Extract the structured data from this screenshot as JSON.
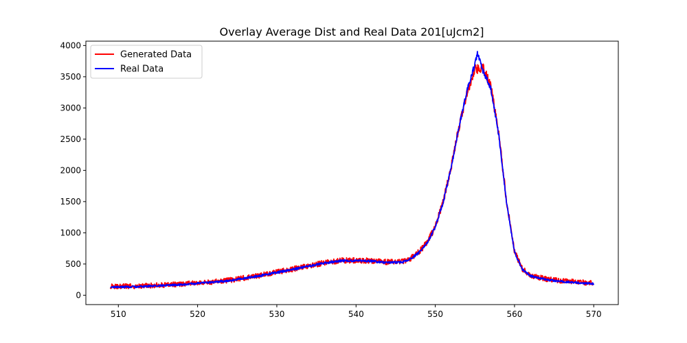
{
  "chart_data": {
    "type": "line",
    "title": "Overlay Average Dist and Real Data 201[uJcm2]",
    "xlabel": "",
    "ylabel": "",
    "xlim": [
      505.9,
      573.1
    ],
    "ylim": [
      -150,
      4070
    ],
    "xticks": [
      510,
      520,
      530,
      540,
      550,
      560,
      570
    ],
    "yticks": [
      0,
      500,
      1000,
      1500,
      2000,
      2500,
      3000,
      3500,
      4000
    ],
    "grid": false,
    "legend_position": "top-left",
    "series": [
      {
        "name": "Generated Data",
        "color": "#ff0000",
        "points": [
          [
            509,
            140
          ],
          [
            512,
            145
          ],
          [
            515,
            160
          ],
          [
            518,
            180
          ],
          [
            520,
            200
          ],
          [
            522,
            215
          ],
          [
            524,
            240
          ],
          [
            526,
            280
          ],
          [
            528,
            320
          ],
          [
            530,
            370
          ],
          [
            532,
            420
          ],
          [
            534,
            470
          ],
          [
            536,
            520
          ],
          [
            538,
            555
          ],
          [
            540,
            560
          ],
          [
            542,
            550
          ],
          [
            544,
            530
          ],
          [
            546,
            540
          ],
          [
            547,
            600
          ],
          [
            548,
            700
          ],
          [
            549,
            850
          ],
          [
            550,
            1100
          ],
          [
            551,
            1500
          ],
          [
            552,
            2050
          ],
          [
            553,
            2700
          ],
          [
            554,
            3250
          ],
          [
            555,
            3620
          ],
          [
            556,
            3650
          ],
          [
            557,
            3350
          ],
          [
            558,
            2600
          ],
          [
            559,
            1500
          ],
          [
            560,
            700
          ],
          [
            561,
            420
          ],
          [
            562,
            320
          ],
          [
            564,
            260
          ],
          [
            566,
            230
          ],
          [
            568,
            210
          ],
          [
            570,
            195
          ]
        ]
      },
      {
        "name": "Real Data",
        "color": "#0000ff",
        "points": [
          [
            509,
            130
          ],
          [
            512,
            135
          ],
          [
            515,
            150
          ],
          [
            518,
            170
          ],
          [
            520,
            190
          ],
          [
            522,
            210
          ],
          [
            524,
            235
          ],
          [
            526,
            275
          ],
          [
            528,
            315
          ],
          [
            530,
            365
          ],
          [
            532,
            415
          ],
          [
            534,
            465
          ],
          [
            536,
            515
          ],
          [
            538,
            550
          ],
          [
            540,
            555
          ],
          [
            542,
            545
          ],
          [
            544,
            520
          ],
          [
            546,
            535
          ],
          [
            547,
            590
          ],
          [
            548,
            690
          ],
          [
            549,
            840
          ],
          [
            550,
            1090
          ],
          [
            551,
            1490
          ],
          [
            552,
            2040
          ],
          [
            553,
            2700
          ],
          [
            554,
            3280
          ],
          [
            555,
            3700
          ],
          [
            555.3,
            3880
          ],
          [
            556,
            3600
          ],
          [
            557,
            3320
          ],
          [
            558,
            2580
          ],
          [
            559,
            1480
          ],
          [
            560,
            690
          ],
          [
            561,
            410
          ],
          [
            562,
            310
          ],
          [
            564,
            250
          ],
          [
            566,
            220
          ],
          [
            568,
            200
          ],
          [
            570,
            185
          ]
        ]
      }
    ]
  }
}
